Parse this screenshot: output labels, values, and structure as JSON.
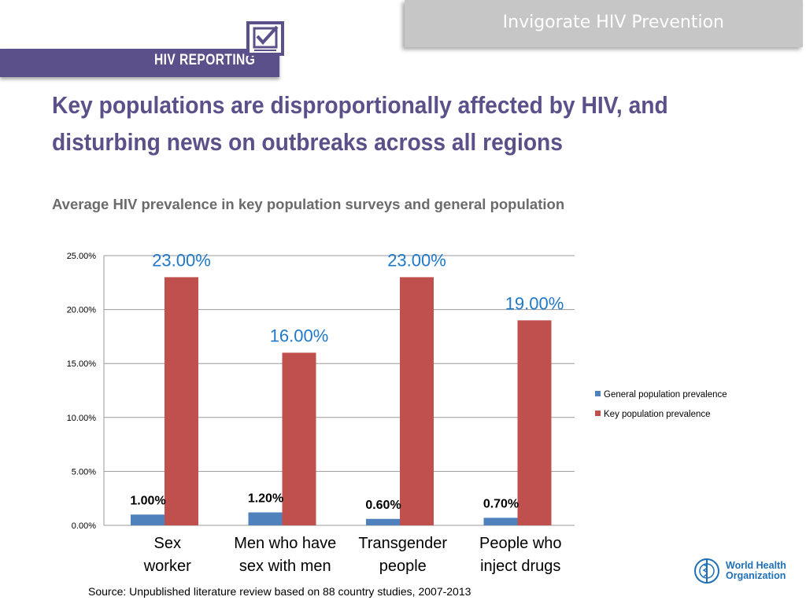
{
  "banner": {
    "text": "Invigorate HIV Prevention"
  },
  "logo": {
    "text": "HIV REPORTING"
  },
  "title": "Key populations are disproportionally affected by HIV, and disturbing news on outbreaks across all regions",
  "subtitle": "Average HIV prevalence in key population surveys and general population",
  "source": "Source: Unpublished literature review based on 88 country studies, 2007-2013",
  "who": {
    "line1": "World Health",
    "line2": "Organization"
  },
  "colors": {
    "general": "#4f81bd",
    "key": "#c0504d",
    "key_label": "#1f78c8",
    "brand": "#5b5089"
  },
  "chart_data": {
    "type": "bar",
    "categories": [
      [
        "Sex",
        "worker"
      ],
      [
        "Men who have",
        "sex with men"
      ],
      [
        "Transgender",
        "people"
      ],
      [
        "People who",
        "inject drugs"
      ]
    ],
    "series": [
      {
        "name": "General population prevalence",
        "values": [
          1.0,
          1.2,
          0.6,
          0.7
        ],
        "labels": [
          "1.00%",
          "1.20%",
          "0.60%",
          "0.70%"
        ]
      },
      {
        "name": "Key population prevalence",
        "values": [
          23.0,
          16.0,
          23.0,
          19.0
        ],
        "labels": [
          "23.00%",
          "16.00%",
          "23.00%",
          "19.00%"
        ]
      }
    ],
    "ylim": [
      0,
      25
    ],
    "yticks": [
      "0.00%",
      "5.00%",
      "10.00%",
      "15.00%",
      "20.00%",
      "25.00%"
    ],
    "grid": true,
    "legend": "right"
  }
}
